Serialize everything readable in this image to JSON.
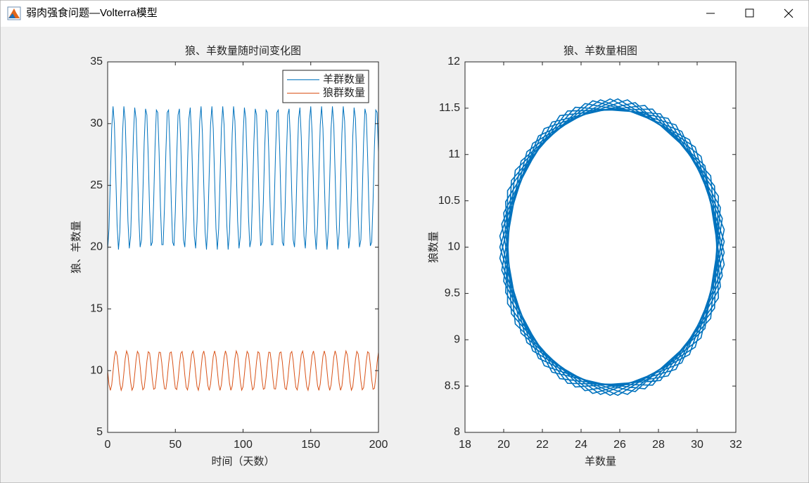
{
  "window": {
    "title": "弱肉强食问题—Volterra模型"
  },
  "chart_data": [
    {
      "type": "line",
      "title": "狼、羊数量随时间变化图",
      "xlabel": "时间（天数）",
      "ylabel": "狼、羊数量",
      "x": [
        0,
        1,
        2,
        3,
        4,
        5,
        6,
        7,
        8,
        9,
        10,
        11,
        12,
        13,
        14,
        15,
        16,
        17,
        18,
        19,
        20,
        21,
        22,
        23,
        24,
        25,
        26,
        27,
        28,
        29,
        30,
        31,
        32,
        33,
        34,
        35,
        36,
        37,
        38,
        39,
        40,
        41,
        42,
        43,
        44,
        45,
        46,
        47,
        48,
        49,
        50,
        51,
        52,
        53,
        54,
        55,
        56,
        57,
        58,
        59,
        60,
        61,
        62,
        63,
        64,
        65,
        66,
        67,
        68,
        69,
        70,
        71,
        72,
        73,
        74,
        75,
        76,
        77,
        78,
        79,
        80,
        81,
        82,
        83,
        84,
        85,
        86,
        87,
        88,
        89,
        90,
        91,
        92,
        93,
        94,
        95,
        96,
        97,
        98,
        99,
        100,
        101,
        102,
        103,
        104,
        105,
        106,
        107,
        108,
        109,
        110,
        111,
        112,
        113,
        114,
        115,
        116,
        117,
        118,
        119,
        120,
        121,
        122,
        123,
        124,
        125,
        126,
        127,
        128,
        129,
        130,
        131,
        132,
        133,
        134,
        135,
        136,
        137,
        138,
        139,
        140,
        141,
        142,
        143,
        144,
        145,
        146,
        147,
        148,
        149,
        150,
        151,
        152,
        153,
        154,
        155,
        156,
        157,
        158,
        159,
        160,
        161,
        162,
        163,
        164,
        165,
        166,
        167,
        168,
        169,
        170,
        171,
        172,
        173,
        174,
        175,
        176,
        177,
        178,
        179,
        180,
        181,
        182,
        183,
        184,
        185,
        186,
        187,
        188,
        189,
        190,
        191,
        192,
        193,
        194,
        195,
        196,
        197,
        198,
        199,
        200
      ],
      "series": [
        {
          "name": "羊群数量",
          "color": "#0072bd",
          "values": [
            19.8,
            21.5,
            25.5,
            29.6,
            31.4,
            29.9,
            25.9,
            21.8,
            19.8,
            21.2,
            25.0,
            29.2,
            31.4,
            30.2,
            26.4,
            22.1,
            19.9,
            20.9,
            24.6,
            28.9,
            31.3,
            30.4,
            26.8,
            22.5,
            20.0,
            20.6,
            24.2,
            28.5,
            31.2,
            30.7,
            27.3,
            22.9,
            20.1,
            20.4,
            23.7,
            28.1,
            31.1,
            30.9,
            27.7,
            23.3,
            20.2,
            20.2,
            23.3,
            27.7,
            30.9,
            31.1,
            28.1,
            23.7,
            20.4,
            20.1,
            22.9,
            27.3,
            30.7,
            31.2,
            28.5,
            24.2,
            20.6,
            20.0,
            22.5,
            26.8,
            30.4,
            31.3,
            28.9,
            24.6,
            20.9,
            19.9,
            22.1,
            26.4,
            30.2,
            31.4,
            29.2,
            25.0,
            21.2,
            19.8,
            21.8,
            25.9,
            29.9,
            31.4,
            29.6,
            25.5,
            21.5,
            19.8,
            21.5,
            25.5,
            29.6,
            31.4,
            29.9,
            25.9,
            21.8,
            19.8,
            21.2,
            25.0,
            29.2,
            31.4,
            30.2,
            26.4,
            22.1,
            19.9,
            20.9,
            24.6,
            28.9,
            31.3,
            30.4,
            26.8,
            22.5,
            20.0,
            20.6,
            24.2,
            28.5,
            31.2,
            30.7,
            27.3,
            22.9,
            20.1,
            20.4,
            23.7,
            28.1,
            31.1,
            30.9,
            27.7,
            23.3,
            20.2,
            20.2,
            23.3,
            27.7,
            30.9,
            31.1,
            28.1,
            23.7,
            20.4,
            20.1,
            22.9,
            27.3,
            30.7,
            31.2,
            28.5,
            24.2,
            20.6,
            20.0,
            22.5,
            26.8,
            30.4,
            31.3,
            28.9,
            24.6,
            20.9,
            19.9,
            22.1,
            26.4,
            30.2,
            31.4,
            29.2,
            25.0,
            21.2,
            19.8,
            21.8,
            25.9,
            29.9,
            31.4,
            29.6,
            25.5,
            21.5,
            19.8,
            21.5,
            25.5,
            29.6,
            31.4,
            29.9,
            25.9,
            21.8,
            19.8,
            21.2,
            25.0,
            29.2,
            31.4,
            30.2,
            26.4,
            22.1,
            19.9,
            20.9,
            24.6,
            28.9,
            31.3,
            30.4,
            26.8,
            22.5,
            20.0,
            20.6,
            24.2,
            28.5,
            31.2,
            30.7,
            27.3,
            22.9,
            20.1,
            20.4,
            23.7,
            28.1,
            31.1,
            30.9,
            27.7
          ]
        },
        {
          "name": "狼群数量",
          "color": "#d95319",
          "values": [
            10,
            8.88,
            8.4,
            8.84,
            9.94,
            11.08,
            11.6,
            11.2,
            10.12,
            8.97,
            8.41,
            8.75,
            9.81,
            10.98,
            11.59,
            11.28,
            10.25,
            9.07,
            8.42,
            8.68,
            9.69,
            10.88,
            11.56,
            11.35,
            10.37,
            9.17,
            8.45,
            8.61,
            9.57,
            10.77,
            11.53,
            11.42,
            10.49,
            9.28,
            8.49,
            8.56,
            9.45,
            10.66,
            11.49,
            11.47,
            10.61,
            9.39,
            8.53,
            8.51,
            9.34,
            10.55,
            11.44,
            11.51,
            10.72,
            9.51,
            8.58,
            8.47,
            9.23,
            10.43,
            11.39,
            11.55,
            10.83,
            9.63,
            8.65,
            8.44,
            9.12,
            10.31,
            11.32,
            11.58,
            10.93,
            9.75,
            8.72,
            8.41,
            9.02,
            10.19,
            11.25,
            11.59,
            11.03,
            9.88,
            8.8,
            8.4,
            8.92,
            10.06,
            11.16,
            11.6,
            11.12,
            10,
            8.88,
            8.4,
            8.84,
            9.94,
            11.08,
            11.6,
            11.2,
            10.12,
            8.97,
            8.41,
            8.75,
            9.81,
            10.98,
            11.59,
            11.28,
            10.25,
            9.07,
            8.42,
            8.68,
            9.69,
            10.88,
            11.56,
            11.35,
            10.37,
            9.17,
            8.45,
            8.61,
            9.57,
            10.77,
            11.53,
            11.42,
            10.49,
            9.28,
            8.49,
            8.56,
            9.45,
            10.66,
            11.49,
            11.47,
            10.61,
            9.39,
            8.53,
            8.51,
            9.34,
            10.55,
            11.44,
            11.51,
            10.72,
            9.51,
            8.58,
            8.47,
            9.23,
            10.43,
            11.39,
            11.55,
            10.83,
            9.63,
            8.65,
            8.44,
            9.12,
            10.31,
            11.32,
            11.58,
            10.93,
            9.75,
            8.72,
            8.41,
            9.02,
            10.19,
            11.25,
            11.59,
            11.03,
            9.88,
            8.8,
            8.4,
            8.92,
            10.06,
            11.16,
            11.6,
            11.12,
            10,
            8.88,
            8.4,
            8.84,
            9.94,
            11.08,
            11.6,
            11.2,
            10.12,
            8.97,
            8.41,
            8.75,
            9.81,
            10.98,
            11.59,
            11.28,
            10.25,
            9.07,
            8.42,
            8.68,
            9.69,
            10.88,
            11.56,
            11.35,
            10.37,
            9.17,
            8.45,
            8.61,
            9.57,
            10.77,
            11.53,
            11.42,
            10.49,
            9.28,
            8.49,
            8.56,
            9.45,
            10.66,
            11.49
          ]
        }
      ],
      "xlim": [
        0,
        200
      ],
      "xticks": [
        0,
        50,
        100,
        150,
        200
      ],
      "ylim": [
        5,
        35
      ],
      "yticks": [
        5,
        10,
        15,
        20,
        25,
        30,
        35
      ],
      "legend": "upper right"
    },
    {
      "type": "phase",
      "title": "狼、羊数量相图",
      "xlabel": "羊数量",
      "ylabel": "狼数量",
      "color": "#0072bd",
      "xlim": [
        18,
        32
      ],
      "xticks": [
        18,
        20,
        22,
        24,
        26,
        28,
        30,
        32
      ],
      "ylim": [
        8,
        12
      ],
      "yticks": [
        8,
        8.5,
        9,
        9.5,
        10,
        10.5,
        11,
        11.5,
        12
      ]
    }
  ]
}
